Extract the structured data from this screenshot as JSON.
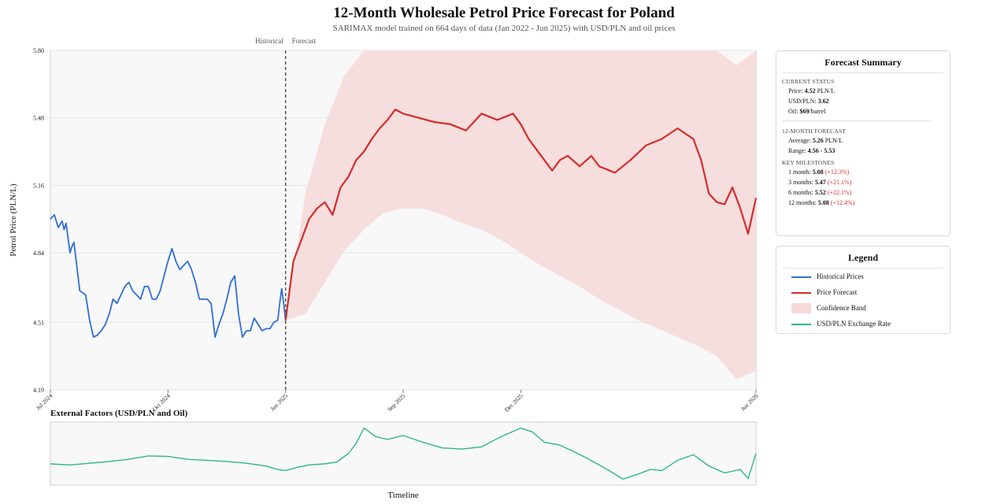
{
  "title": "12-Month Wholesale Petrol Price Forecast for Poland",
  "subtitle": "SARIMAX model trained on 664 days of data (Jan 2022 - Jun 2025) with USD/PLN and oil prices",
  "colors": {
    "historical": "#2f6fd6",
    "forecast": "#d62b2b",
    "band": "#f7d9d9",
    "fx": "#2bb887",
    "plot_bg": "#f8f8f8",
    "pct": "#d9302a"
  },
  "chart_data": [
    {
      "type": "line",
      "ylabel": "Petrol Price (PLN/L)",
      "ylim": [
        4.19,
        5.8
      ],
      "yticks": [
        "4.19",
        "4.51",
        "4.84",
        "5.16",
        "5.48",
        "5.80"
      ],
      "xticks": [
        "Jul 2024",
        "Oct 2024",
        "Jun 2025",
        "Sep 2025",
        "Dec 2025",
        "Jun 2026"
      ],
      "xtick_pos": [
        0,
        3,
        6,
        9,
        12,
        18
      ],
      "split_labels": [
        "Historical",
        "Forecast"
      ],
      "split_at": 6,
      "grid": true,
      "series": [
        {
          "name": "Historical Prices",
          "x_month": [
            0.0,
            0.1,
            0.2,
            0.3,
            0.35,
            0.4,
            0.5,
            0.55,
            0.6,
            0.75,
            0.9,
            1.0,
            1.1,
            1.2,
            1.3,
            1.4,
            1.5,
            1.6,
            1.7,
            1.8,
            1.9,
            2.0,
            2.1,
            2.2,
            2.3,
            2.4,
            2.5,
            2.6,
            2.7,
            2.8,
            3.0,
            3.1,
            3.2,
            3.3,
            3.4,
            3.5,
            3.6,
            3.7,
            3.8,
            4.0,
            4.1,
            4.2,
            4.3,
            4.4,
            4.5,
            4.6,
            4.7,
            4.8,
            4.9,
            5.0,
            5.1,
            5.2,
            5.3,
            5.4,
            5.5,
            5.6,
            5.7,
            5.8,
            5.85,
            5.9,
            5.95,
            6.0
          ],
          "values": [
            5.0,
            5.02,
            4.96,
            4.99,
            4.95,
            4.98,
            4.84,
            4.87,
            4.89,
            4.66,
            4.64,
            4.52,
            4.44,
            4.45,
            4.47,
            4.5,
            4.55,
            4.62,
            4.6,
            4.64,
            4.68,
            4.7,
            4.66,
            4.64,
            4.62,
            4.68,
            4.68,
            4.62,
            4.62,
            4.66,
            4.8,
            4.86,
            4.8,
            4.76,
            4.78,
            4.8,
            4.76,
            4.7,
            4.62,
            4.62,
            4.6,
            4.44,
            4.5,
            4.55,
            4.62,
            4.7,
            4.73,
            4.55,
            4.44,
            4.47,
            4.47,
            4.53,
            4.5,
            4.47,
            4.48,
            4.48,
            4.51,
            4.52,
            4.6,
            4.67,
            4.6,
            4.52
          ]
        },
        {
          "name": "Price Forecast",
          "x_month": [
            6.0,
            6.2,
            6.4,
            6.6,
            6.8,
            7.0,
            7.2,
            7.4,
            7.6,
            7.8,
            8.0,
            8.2,
            8.4,
            8.6,
            8.8,
            9.0,
            9.4,
            9.8,
            10.2,
            10.6,
            11.0,
            11.4,
            11.8,
            12.0,
            12.2,
            12.4,
            12.6,
            12.8,
            13.0,
            13.2,
            13.5,
            13.8,
            14.0,
            14.4,
            14.8,
            15.2,
            15.6,
            16.0,
            16.4,
            16.6,
            16.8,
            17.0,
            17.2,
            17.4,
            17.6,
            17.8,
            18.0
          ],
          "values": [
            4.52,
            4.8,
            4.9,
            5.0,
            5.05,
            5.08,
            5.02,
            5.15,
            5.2,
            5.28,
            5.32,
            5.38,
            5.43,
            5.47,
            5.52,
            5.5,
            5.48,
            5.46,
            5.45,
            5.42,
            5.5,
            5.47,
            5.5,
            5.45,
            5.38,
            5.33,
            5.28,
            5.23,
            5.28,
            5.3,
            5.25,
            5.3,
            5.25,
            5.22,
            5.28,
            5.35,
            5.38,
            5.43,
            5.38,
            5.28,
            5.12,
            5.08,
            5.07,
            5.15,
            5.05,
            4.93,
            5.1
          ]
        }
      ],
      "band": {
        "name": "Confidence Band",
        "x_month": [
          6.0,
          6.5,
          7.0,
          7.5,
          8.0,
          8.5,
          9.0,
          9.5,
          10.0,
          10.5,
          11.0,
          11.5,
          12.0,
          12.5,
          13.0,
          13.5,
          14.0,
          14.5,
          15.0,
          15.5,
          16.0,
          16.5,
          17.0,
          17.5,
          18.0
        ],
        "upper": [
          4.52,
          5.12,
          5.45,
          5.68,
          5.8,
          5.8,
          5.8,
          5.8,
          5.8,
          5.8,
          5.8,
          5.8,
          5.8,
          5.8,
          5.8,
          5.8,
          5.8,
          5.8,
          5.8,
          5.8,
          5.8,
          5.8,
          5.8,
          5.73,
          5.8
        ],
        "lower": [
          4.52,
          4.55,
          4.7,
          4.85,
          4.95,
          5.03,
          5.05,
          5.05,
          5.02,
          4.98,
          4.95,
          4.9,
          4.84,
          4.78,
          4.73,
          4.68,
          4.62,
          4.57,
          4.52,
          4.48,
          4.44,
          4.4,
          4.35,
          4.24,
          4.28
        ]
      }
    },
    {
      "type": "line",
      "title": "External Factors (USD/PLN and Oil)",
      "xlabel": "Timeline",
      "series": [
        {
          "name": "USD/PLN Exchange Rate",
          "x_month": [
            0,
            0.5,
            1,
            1.5,
            2,
            2.5,
            3,
            3.5,
            4,
            4.5,
            5,
            5.5,
            5.8,
            6,
            6.3,
            6.6,
            7,
            7.3,
            7.6,
            7.8,
            8,
            8.3,
            8.6,
            9,
            9.5,
            10,
            10.5,
            11,
            11.5,
            12,
            12.3,
            12.6,
            13,
            13.3,
            13.6,
            14,
            14.3,
            14.6,
            15,
            15.3,
            15.6,
            16,
            16.4,
            16.8,
            17.2,
            17.6,
            17.8,
            18
          ],
          "values": [
            0.32,
            0.3,
            0.33,
            0.36,
            0.4,
            0.46,
            0.45,
            0.4,
            0.38,
            0.36,
            0.33,
            0.28,
            0.22,
            0.2,
            0.26,
            0.3,
            0.32,
            0.35,
            0.5,
            0.68,
            0.95,
            0.8,
            0.75,
            0.82,
            0.7,
            0.6,
            0.58,
            0.62,
            0.8,
            0.95,
            0.88,
            0.7,
            0.65,
            0.55,
            0.45,
            0.3,
            0.18,
            0.05,
            0.14,
            0.22,
            0.2,
            0.38,
            0.48,
            0.28,
            0.16,
            0.22,
            0.06,
            0.5
          ]
        }
      ]
    }
  ],
  "summary": {
    "title": "Forecast Summary",
    "current_status": "CURRENT STATUS",
    "price_label": "Price:",
    "price_value": "4.52",
    "price_unit": "PLN/L",
    "usd_label": "USD/PLN:",
    "usd_value": "3.62",
    "oil_label": "Oil:",
    "oil_value": "$69",
    "oil_unit": "/barrel",
    "forecast_heading": "12-MONTH FORECAST",
    "avg_label": "Average:",
    "avg_value": "5.26",
    "avg_unit": "PLN/L",
    "range_label": "Range:",
    "range_value": "4.56 - 5.53",
    "milestones_heading": "KEY MILESTONES",
    "milestones": [
      {
        "label": "1 month:",
        "value": "5.08",
        "pct": "+12.3%"
      },
      {
        "label": "3 months:",
        "value": "5.47",
        "pct": "+21.1%"
      },
      {
        "label": "6 months:",
        "value": "5.52",
        "pct": "+22.1%"
      },
      {
        "label": "12 months:",
        "value": "5.08",
        "pct": "+12.4%"
      }
    ]
  },
  "legend": {
    "title": "Legend",
    "items": [
      "Historical Prices",
      "Price Forecast",
      "Confidence Band",
      "USD/PLN Exchange Rate"
    ]
  }
}
